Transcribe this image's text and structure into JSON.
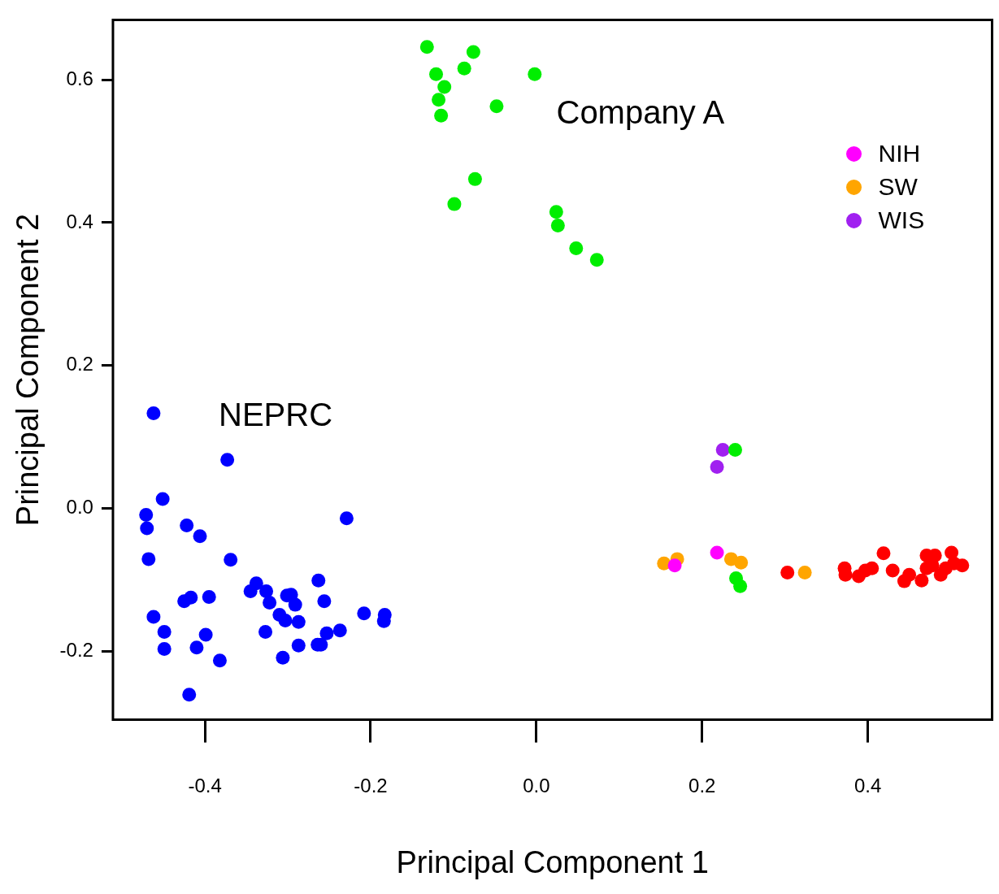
{
  "chart_data": {
    "type": "scatter",
    "xlabel": "Principal Component 1",
    "ylabel": "Principal Component 2",
    "xlim": [
      -0.511,
      0.55
    ],
    "ylim": [
      -0.296,
      0.684
    ],
    "xticks": [
      -0.4,
      -0.2,
      {
        "value": 0,
        "label": "0.0"
      },
      0.2,
      0.4
    ],
    "yticks": [
      -0.2,
      {
        "value": 0,
        "label": "0.0"
      },
      0.2,
      0.4,
      0.6
    ],
    "grid": false,
    "legend": "top right",
    "marker": "circle",
    "annotations": [
      "Company A",
      "NEPRC"
    ],
    "series": [
      {
        "color": "#0000ff",
        "x": [
          -0.462,
          -0.373,
          -0.451,
          -0.471,
          -0.47,
          -0.468,
          -0.422,
          -0.406,
          -0.369,
          -0.229,
          -0.263,
          -0.256,
          -0.345,
          -0.338,
          -0.326,
          -0.322,
          -0.301,
          -0.296,
          -0.291,
          -0.31,
          -0.303,
          -0.287,
          -0.327,
          -0.306,
          -0.287,
          -0.264,
          -0.26,
          -0.253,
          -0.237,
          -0.208,
          -0.183,
          -0.184,
          -0.425,
          -0.417,
          -0.395,
          -0.462,
          -0.449,
          -0.449,
          -0.399,
          -0.41,
          -0.382,
          -0.419
        ],
        "values": [
          0.133,
          0.068,
          0.013,
          -0.009,
          -0.028,
          -0.071,
          -0.024,
          -0.039,
          -0.072,
          -0.014,
          -0.101,
          -0.13,
          -0.116,
          -0.105,
          -0.116,
          -0.132,
          -0.122,
          -0.121,
          -0.135,
          -0.149,
          -0.157,
          -0.159,
          -0.173,
          -0.209,
          -0.192,
          -0.191,
          -0.191,
          -0.175,
          -0.171,
          -0.147,
          -0.149,
          -0.158,
          -0.13,
          -0.125,
          -0.124,
          -0.152,
          -0.173,
          -0.197,
          -0.177,
          -0.195,
          -0.213,
          -0.261
        ]
      },
      {
        "color": "#00ee00",
        "x": [
          -0.132,
          -0.076,
          -0.087,
          -0.121,
          -0.002,
          -0.111,
          -0.118,
          -0.115,
          -0.048,
          -0.074,
          -0.099,
          0.024,
          0.026,
          0.048,
          0.073,
          0.24,
          0.241,
          0.246
        ],
        "values": [
          0.646,
          0.639,
          0.616,
          0.608,
          0.608,
          0.59,
          0.572,
          0.55,
          0.563,
          0.461,
          0.426,
          0.415,
          0.396,
          0.364,
          0.348,
          0.082,
          -0.098,
          -0.109
        ]
      },
      {
        "color": "#ff0000",
        "x": [
          0.303,
          0.419,
          0.372,
          0.373,
          0.389,
          0.397,
          0.405,
          0.43,
          0.444,
          0.45,
          0.465,
          0.471,
          0.481,
          0.501,
          0.478,
          0.488,
          0.494,
          0.514,
          0.504,
          0.471
        ],
        "values": [
          -0.09,
          -0.063,
          -0.084,
          -0.093,
          -0.095,
          -0.087,
          -0.084,
          -0.087,
          -0.102,
          -0.093,
          -0.101,
          -0.066,
          -0.066,
          -0.062,
          -0.08,
          -0.093,
          -0.084,
          -0.08,
          -0.077,
          -0.084
        ]
      },
      {
        "name": "NIH",
        "color": "#ff00ff",
        "x": [
          0.218,
          0.167
        ],
        "values": [
          -0.062,
          -0.08
        ]
      },
      {
        "name": "SW",
        "color": "#ffa500",
        "x": [
          0.154,
          0.17,
          0.235,
          0.247,
          0.324
        ],
        "values": [
          -0.077,
          -0.071,
          -0.071,
          -0.076,
          -0.09
        ]
      },
      {
        "name": "WIS",
        "color": "#a020f0",
        "x": [
          0.225,
          0.218
        ],
        "values": [
          0.082,
          0.058
        ]
      }
    ]
  }
}
